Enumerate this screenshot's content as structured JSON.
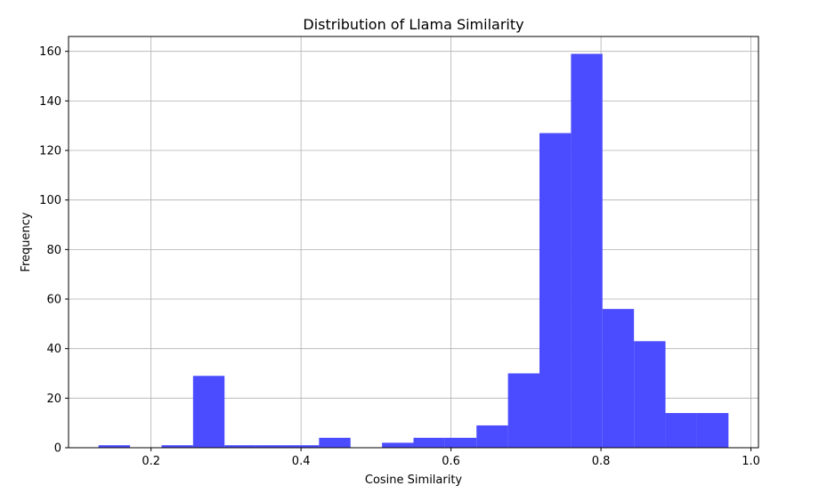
{
  "chart_data": {
    "type": "bar",
    "subtype": "histogram",
    "title": "Distribution of Llama Similarity",
    "xlabel": "Cosine Similarity",
    "ylabel": "Frequency",
    "xlim": [
      0.09,
      1.01
    ],
    "ylim": [
      0,
      166
    ],
    "grid": true,
    "bar_color": "#4b4bff",
    "bin_edges": [
      0.13,
      0.172,
      0.214,
      0.256,
      0.298,
      0.34,
      0.382,
      0.424,
      0.466,
      0.508,
      0.55,
      0.592,
      0.634,
      0.676,
      0.718,
      0.76,
      0.802,
      0.844,
      0.886,
      0.928,
      0.97
    ],
    "values": [
      1,
      0,
      1,
      29,
      1,
      1,
      1,
      4,
      0,
      2,
      4,
      4,
      9,
      30,
      127,
      159,
      56,
      43,
      14,
      14
    ],
    "xticks": [
      0.2,
      0.4,
      0.6,
      0.8,
      1.0
    ],
    "xtick_labels": [
      "0.2",
      "0.4",
      "0.6",
      "0.8",
      "1.0"
    ],
    "yticks": [
      0,
      20,
      40,
      60,
      80,
      100,
      120,
      140,
      160
    ],
    "ytick_labels": [
      "0",
      "20",
      "40",
      "60",
      "80",
      "100",
      "120",
      "140",
      "160"
    ]
  }
}
